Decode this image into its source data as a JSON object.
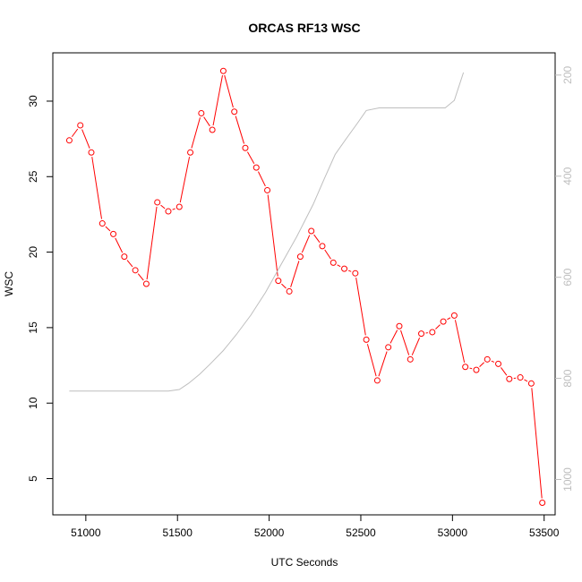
{
  "chart_data": {
    "type": "line",
    "title": "ORCAS RF13 WSC",
    "xlabel": "UTC Seconds",
    "ylabel": "WSC",
    "xlim": [
      50820,
      53560
    ],
    "ylim": [
      2.6,
      33.2
    ],
    "y2lim": [
      1070,
      156
    ],
    "x_ticks": [
      51000,
      51500,
      52000,
      52500,
      53000,
      53500
    ],
    "y_ticks": [
      5,
      10,
      15,
      20,
      25,
      30
    ],
    "y2_ticks": [
      200,
      400,
      600,
      800,
      1000
    ],
    "colors": {
      "wsc": "#ff0000",
      "secondary": "#bebebe"
    },
    "series": [
      {
        "style": "points-lines",
        "color": "#ff0000",
        "x": [
          50910,
          50970,
          51030,
          51090,
          51150,
          51210,
          51270,
          51330,
          51390,
          51450,
          51510,
          51570,
          51630,
          51690,
          51750,
          51810,
          51870,
          51930,
          51990,
          52050,
          52110,
          52170,
          52230,
          52290,
          52350,
          52410,
          52470,
          52530,
          52590,
          52650,
          52710,
          52770,
          52830,
          52890,
          52950,
          53010,
          53070,
          53130,
          53190,
          53250,
          53310,
          53370,
          53430,
          53490
        ],
        "y": [
          27.4,
          28.4,
          26.6,
          21.9,
          21.2,
          19.7,
          18.8,
          17.9,
          23.3,
          22.7,
          23.0,
          26.6,
          29.2,
          28.1,
          32.0,
          29.3,
          26.9,
          25.6,
          24.1,
          18.1,
          17.4,
          19.7,
          21.4,
          20.4,
          19.3,
          18.9,
          18.6,
          14.2,
          11.5,
          13.7,
          15.1,
          12.9,
          14.6,
          14.7,
          15.4,
          15.8,
          12.4,
          12.2,
          12.9,
          12.6,
          11.6,
          11.7,
          11.3,
          3.4
        ]
      },
      {
        "style": "line",
        "color": "#bebebe",
        "axis": "right",
        "x": [
          50910,
          51000,
          51100,
          51200,
          51300,
          51400,
          51450,
          51510,
          51560,
          51620,
          51680,
          51750,
          51820,
          51900,
          51980,
          52060,
          52150,
          52240,
          52300,
          52360,
          52420,
          52480,
          52530,
          52600,
          52700,
          52800,
          52900,
          52960,
          53010,
          53060
        ],
        "y": [
          825,
          825,
          825,
          825,
          825,
          825,
          825,
          822,
          810,
          792,
          771,
          745,
          714,
          675,
          630,
          578,
          520,
          456,
          406,
          357,
          326,
          296,
          270,
          265,
          265,
          265,
          265,
          265,
          250,
          195
        ]
      }
    ]
  }
}
